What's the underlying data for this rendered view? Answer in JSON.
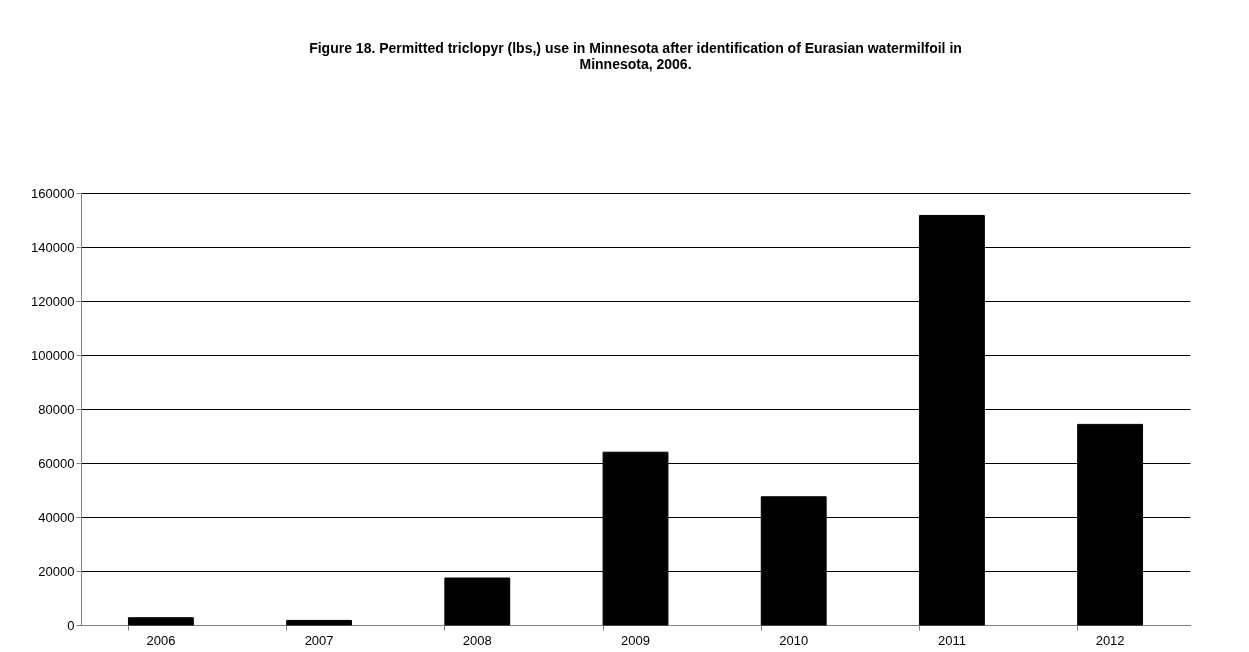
{
  "chart_data": {
    "type": "bar",
    "title": "Figure  18. Permitted triclopyr (lbs,) use in Minnesota after identification of Eurasian watermilfoil in Minnesota, 2006.",
    "categories": [
      "2006",
      "2007",
      "2008",
      "2009",
      "2010",
      "2011",
      "2012"
    ],
    "values": [
      2700,
      1700,
      17400,
      64000,
      47500,
      151700,
      74300
    ],
    "color": "#000000",
    "ylim": [
      0,
      160000
    ],
    "yticks": [
      0,
      20000,
      40000,
      60000,
      80000,
      100000,
      120000,
      140000,
      160000
    ],
    "grid": "y"
  }
}
